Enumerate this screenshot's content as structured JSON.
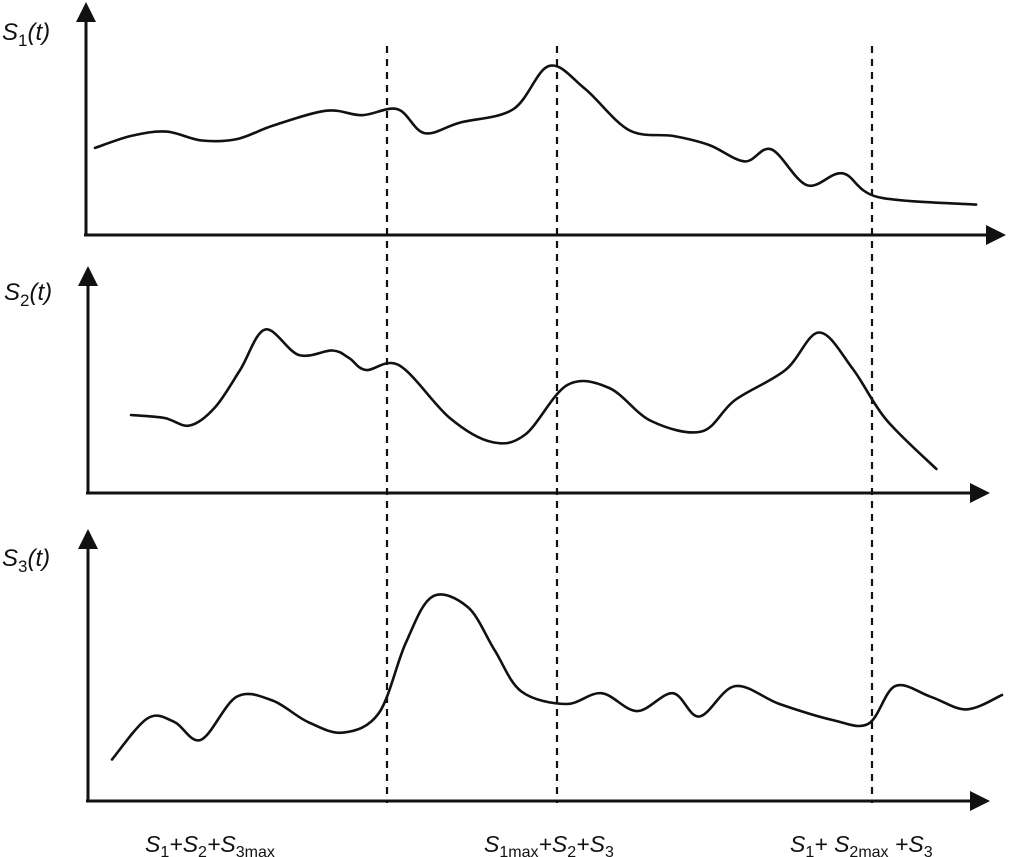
{
  "panels": [
    {
      "id": "s1",
      "label": {
        "pre": "S",
        "sub": "1",
        "post": "(t)"
      },
      "curve": [
        [
          0.0,
          0.45
        ],
        [
          0.04,
          0.53
        ],
        [
          0.08,
          0.56
        ],
        [
          0.12,
          0.5
        ],
        [
          0.16,
          0.51
        ],
        [
          0.2,
          0.6
        ],
        [
          0.26,
          0.7
        ],
        [
          0.3,
          0.67
        ],
        [
          0.34,
          0.71
        ],
        [
          0.37,
          0.55
        ],
        [
          0.41,
          0.62
        ],
        [
          0.47,
          0.71
        ],
        [
          0.51,
          1.0
        ],
        [
          0.55,
          0.85
        ],
        [
          0.6,
          0.57
        ],
        [
          0.65,
          0.53
        ],
        [
          0.69,
          0.47
        ],
        [
          0.73,
          0.36
        ],
        [
          0.76,
          0.44
        ],
        [
          0.8,
          0.2
        ],
        [
          0.84,
          0.28
        ],
        [
          0.88,
          0.12
        ],
        [
          0.99,
          0.07
        ]
      ]
    },
    {
      "id": "s2",
      "label": {
        "pre": "S",
        "sub": "2",
        "post": "(t)"
      },
      "curve": [
        [
          0.0,
          0.4
        ],
        [
          0.04,
          0.38
        ],
        [
          0.07,
          0.33
        ],
        [
          0.1,
          0.45
        ],
        [
          0.13,
          0.7
        ],
        [
          0.16,
          0.97
        ],
        [
          0.2,
          0.8
        ],
        [
          0.24,
          0.83
        ],
        [
          0.26,
          0.78
        ],
        [
          0.28,
          0.7
        ],
        [
          0.32,
          0.73
        ],
        [
          0.38,
          0.38
        ],
        [
          0.43,
          0.22
        ],
        [
          0.47,
          0.27
        ],
        [
          0.52,
          0.6
        ],
        [
          0.57,
          0.58
        ],
        [
          0.62,
          0.36
        ],
        [
          0.68,
          0.29
        ],
        [
          0.72,
          0.5
        ],
        [
          0.78,
          0.7
        ],
        [
          0.82,
          0.95
        ],
        [
          0.86,
          0.71
        ],
        [
          0.9,
          0.37
        ],
        [
          0.96,
          0.04
        ]
      ]
    },
    {
      "id": "s3",
      "label": {
        "pre": "S",
        "sub": "3",
        "post": "(t)"
      },
      "curve": [
        [
          0.0,
          0.07
        ],
        [
          0.04,
          0.3
        ],
        [
          0.07,
          0.28
        ],
        [
          0.1,
          0.18
        ],
        [
          0.14,
          0.42
        ],
        [
          0.18,
          0.4
        ],
        [
          0.22,
          0.28
        ],
        [
          0.26,
          0.22
        ],
        [
          0.3,
          0.33
        ],
        [
          0.33,
          0.72
        ],
        [
          0.36,
          0.98
        ],
        [
          0.4,
          0.92
        ],
        [
          0.43,
          0.68
        ],
        [
          0.46,
          0.45
        ],
        [
          0.51,
          0.38
        ],
        [
          0.55,
          0.44
        ],
        [
          0.59,
          0.34
        ],
        [
          0.63,
          0.44
        ],
        [
          0.66,
          0.31
        ],
        [
          0.7,
          0.48
        ],
        [
          0.75,
          0.38
        ],
        [
          0.81,
          0.29
        ],
        [
          0.85,
          0.27
        ],
        [
          0.88,
          0.48
        ],
        [
          0.92,
          0.42
        ],
        [
          0.96,
          0.35
        ],
        [
          1.0,
          0.43
        ]
      ]
    }
  ],
  "guides": [
    {
      "id": "s3-max",
      "label": {
        "a": "S",
        "as": "1",
        "plus1": "+",
        "b": "S",
        "bs": "2",
        "plus2": "+",
        "c": "S",
        "cs": "3max"
      }
    },
    {
      "id": "s1-max",
      "label": {
        "a": "S",
        "as": "1max",
        "plus1": "+",
        "b": "S",
        "bs": "2",
        "plus2": "+",
        "c": "S",
        "cs": "3"
      }
    },
    {
      "id": "s2-max",
      "label": {
        "a": "S",
        "as": "1",
        "plus1": "+ ",
        "b": "S",
        "bs": "2max",
        "plus2": " +",
        "c": "S",
        "cs": "3"
      }
    }
  ]
}
